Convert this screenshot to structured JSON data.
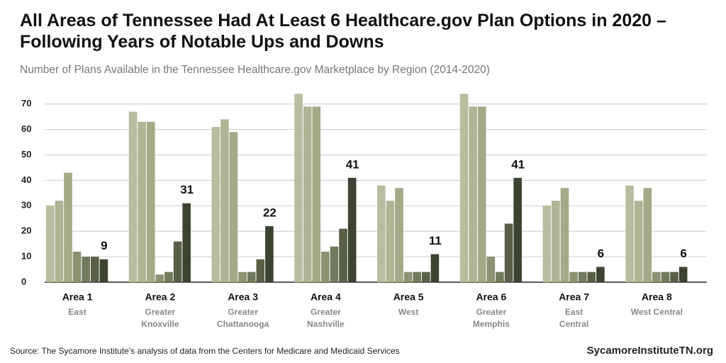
{
  "chart_data": {
    "type": "bar",
    "title": "All Areas of Tennessee Had At Least 6 Healthcare.gov Plan Options in 2020 – Following Years of Notable Ups and Downs",
    "subtitle": "Number of Plans Available in the Tennessee Healthcare.gov  Marketplace  by Region (2014-2020)",
    "categories": [
      "Area 1",
      "Area 2",
      "Area 3",
      "Area 4",
      "Area 5",
      "Area 6",
      "Area 7",
      "Area 8"
    ],
    "category_subtitles": [
      [
        "East"
      ],
      [
        "Greater",
        "Knoxville"
      ],
      [
        "Greater",
        "Chattanooga"
      ],
      [
        "Greater",
        "Nashville"
      ],
      [
        "West"
      ],
      [
        "Greater",
        "Memphis"
      ],
      [
        "East",
        "Central"
      ],
      [
        "West Central"
      ]
    ],
    "series": [
      {
        "color": "#b9bd9f",
        "values": [
          30,
          67,
          61,
          74,
          38,
          74,
          30,
          38
        ]
      },
      {
        "color": "#afb494",
        "values": [
          32,
          63,
          64,
          69,
          32,
          69,
          32,
          32
        ]
      },
      {
        "color": "#a4a987",
        "values": [
          43,
          63,
          59,
          69,
          37,
          69,
          37,
          37
        ]
      },
      {
        "color": "#8c9272",
        "values": [
          12,
          3,
          4,
          12,
          4,
          10,
          4,
          4
        ]
      },
      {
        "color": "#727a5c",
        "values": [
          10,
          4,
          4,
          14,
          4,
          4,
          4,
          4
        ]
      },
      {
        "color": "#585f46",
        "values": [
          10,
          16,
          9,
          21,
          4,
          23,
          4,
          4
        ]
      },
      {
        "color": "#3c4330",
        "values": [
          9,
          31,
          22,
          41,
          11,
          41,
          6,
          6
        ]
      }
    ],
    "labeled_series": 6,
    "ylim": [
      0,
      78
    ],
    "yticks": [
      0,
      10,
      20,
      30,
      40,
      50,
      60,
      70
    ],
    "grid": true,
    "source": "Source: The Sycamore Institute's analysis of data from the Centers for Medicare and Medicaid Services",
    "credit": "SycamoreInstituteTN.org"
  }
}
